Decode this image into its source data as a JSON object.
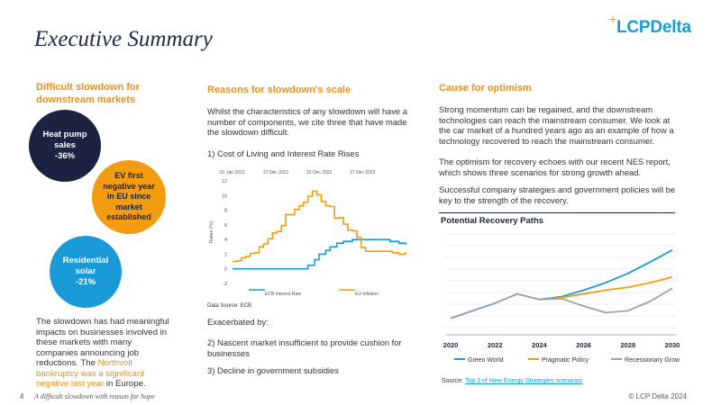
{
  "title": "Executive Summary",
  "logo": {
    "text": "LCPDelta",
    "plus": "+"
  },
  "left": {
    "heading": "Difficult slowdown for downstream markets",
    "circles": [
      {
        "label": "Heat pump sales",
        "value": "-36%",
        "color": "#1b2340"
      },
      {
        "label": "EV first negative year in EU since market established",
        "value": "",
        "color": "#f39c12"
      },
      {
        "label": "Residential solar",
        "value": "-21%",
        "color": "#1a9ad6"
      }
    ],
    "body_prefix": "The slowdown has had meaningful impacts on businesses involved in these markets with many companies announcing job reductions. The ",
    "body_highlight": "Northvolt bankruptcy was a significant negative last year",
    "body_suffix": " in Europe."
  },
  "middle": {
    "heading": "Reasons for slowdown's scale",
    "intro": "Whilst the characteristics of any slowdown will have a number of components, we cite three that have made the slowdown difficult.",
    "reason1": "1) Cost of Living and Interest Rate Rises",
    "exacerbated": "Exacerbated by:",
    "reason2": "2) Nascent market insufficient to provide cushion for businesses",
    "reason3": "3) Decline in government subsidies"
  },
  "right": {
    "heading": "Cause for optimism",
    "para1": "Strong momentum can be regained, and the downstream technologies can reach the mainstream consumer. We look at the car market of a hundred years ago as an example of how a technology recovered to reach the mainstream consumer.",
    "para2": "The optimism for recovery echoes with our recent NES report, which shows three scenarios for strong growth ahead.",
    "para3": "Successful company strategies and government policies will be key to the strength of the recovery.",
    "source_prefix": "Source: ",
    "source_link": "Top 3 of New Energy Strategies scenarios"
  },
  "footer": {
    "page": "4",
    "note": "A difficult slowdown with reason for hope",
    "copyright": "© LCP Delta 2024"
  },
  "chart_data": [
    {
      "type": "line",
      "title": "",
      "ylabel": "Rates (%)",
      "source": "Data Source: ECB",
      "top_x_labels": [
        "01 Jan 2021",
        "27 Dec 2021",
        "22 Dec 2022",
        "17 Dec 2023"
      ],
      "y_ticks": [
        -2,
        0,
        2,
        4,
        6,
        8,
        10,
        12
      ],
      "ylim": [
        -2,
        12
      ],
      "xlim": [
        2021.0,
        2024.9
      ],
      "series": [
        {
          "name": "ECB Interest Rate",
          "color": "#1a9ad6",
          "x": [
            2021.0,
            2022.55,
            2022.7,
            2022.85,
            2022.95,
            2023.1,
            2023.2,
            2023.35,
            2023.5,
            2023.7,
            2024.4,
            2024.55,
            2024.75,
            2024.9
          ],
          "y": [
            0,
            0,
            0.5,
            1.25,
            2.0,
            2.5,
            3.0,
            3.5,
            3.75,
            4.0,
            4.0,
            3.75,
            3.5,
            3.25
          ]
        },
        {
          "name": "EU Inflation",
          "color": "#f39c12",
          "x": [
            2021.0,
            2021.1,
            2021.2,
            2021.3,
            2021.4,
            2021.5,
            2021.6,
            2021.7,
            2021.8,
            2021.9,
            2022.0,
            2022.1,
            2022.2,
            2022.3,
            2022.4,
            2022.5,
            2022.6,
            2022.7,
            2022.8,
            2022.9,
            2023.0,
            2023.1,
            2023.2,
            2023.3,
            2023.4,
            2023.5,
            2023.6,
            2023.7,
            2023.8,
            2023.9,
            2024.0,
            2024.2,
            2024.4,
            2024.6,
            2024.75,
            2024.9
          ],
          "y": [
            1.0,
            1.1,
            1.5,
            1.7,
            2.1,
            2.2,
            3.0,
            3.4,
            4.1,
            4.9,
            5.1,
            5.9,
            7.4,
            7.4,
            8.1,
            8.6,
            9.1,
            9.9,
            10.6,
            10.1,
            9.2,
            8.6,
            8.5,
            6.9,
            7.0,
            6.1,
            5.3,
            5.2,
            4.3,
            2.9,
            2.4,
            2.4,
            2.4,
            2.2,
            2.0,
            2.3
          ]
        }
      ]
    },
    {
      "type": "line",
      "title": "Potential Recovery Paths",
      "x_ticks": [
        "2020",
        "2022",
        "2024",
        "2026",
        "2028",
        "2030"
      ],
      "xlim": [
        2020,
        2030
      ],
      "ylim": [
        0,
        10
      ],
      "grid": true,
      "legend": "bottom",
      "series": [
        {
          "name": "Green World",
          "color": "#1a9ad6",
          "x": [
            2020,
            2021,
            2022,
            2023,
            2024,
            2025,
            2026,
            2027,
            2028,
            2029,
            2030
          ],
          "y": [
            1.0,
            1.8,
            2.6,
            3.6,
            3.0,
            3.3,
            4.0,
            4.8,
            5.8,
            7.0,
            8.3
          ]
        },
        {
          "name": "Pragmatic Policy",
          "color": "#f39c12",
          "x": [
            2024,
            2025,
            2026,
            2027,
            2028,
            2029,
            2030
          ],
          "y": [
            3.0,
            3.2,
            3.6,
            4.0,
            4.3,
            4.8,
            5.4
          ]
        },
        {
          "name": "Recessionary Growth",
          "color": "#9aa3ad",
          "x": [
            2020,
            2021,
            2022,
            2023,
            2024,
            2025,
            2026,
            2027,
            2028,
            2029,
            2030
          ],
          "y": [
            1.0,
            1.8,
            2.6,
            3.6,
            3.0,
            3.1,
            2.3,
            1.6,
            1.8,
            2.8,
            4.2
          ]
        }
      ]
    }
  ]
}
